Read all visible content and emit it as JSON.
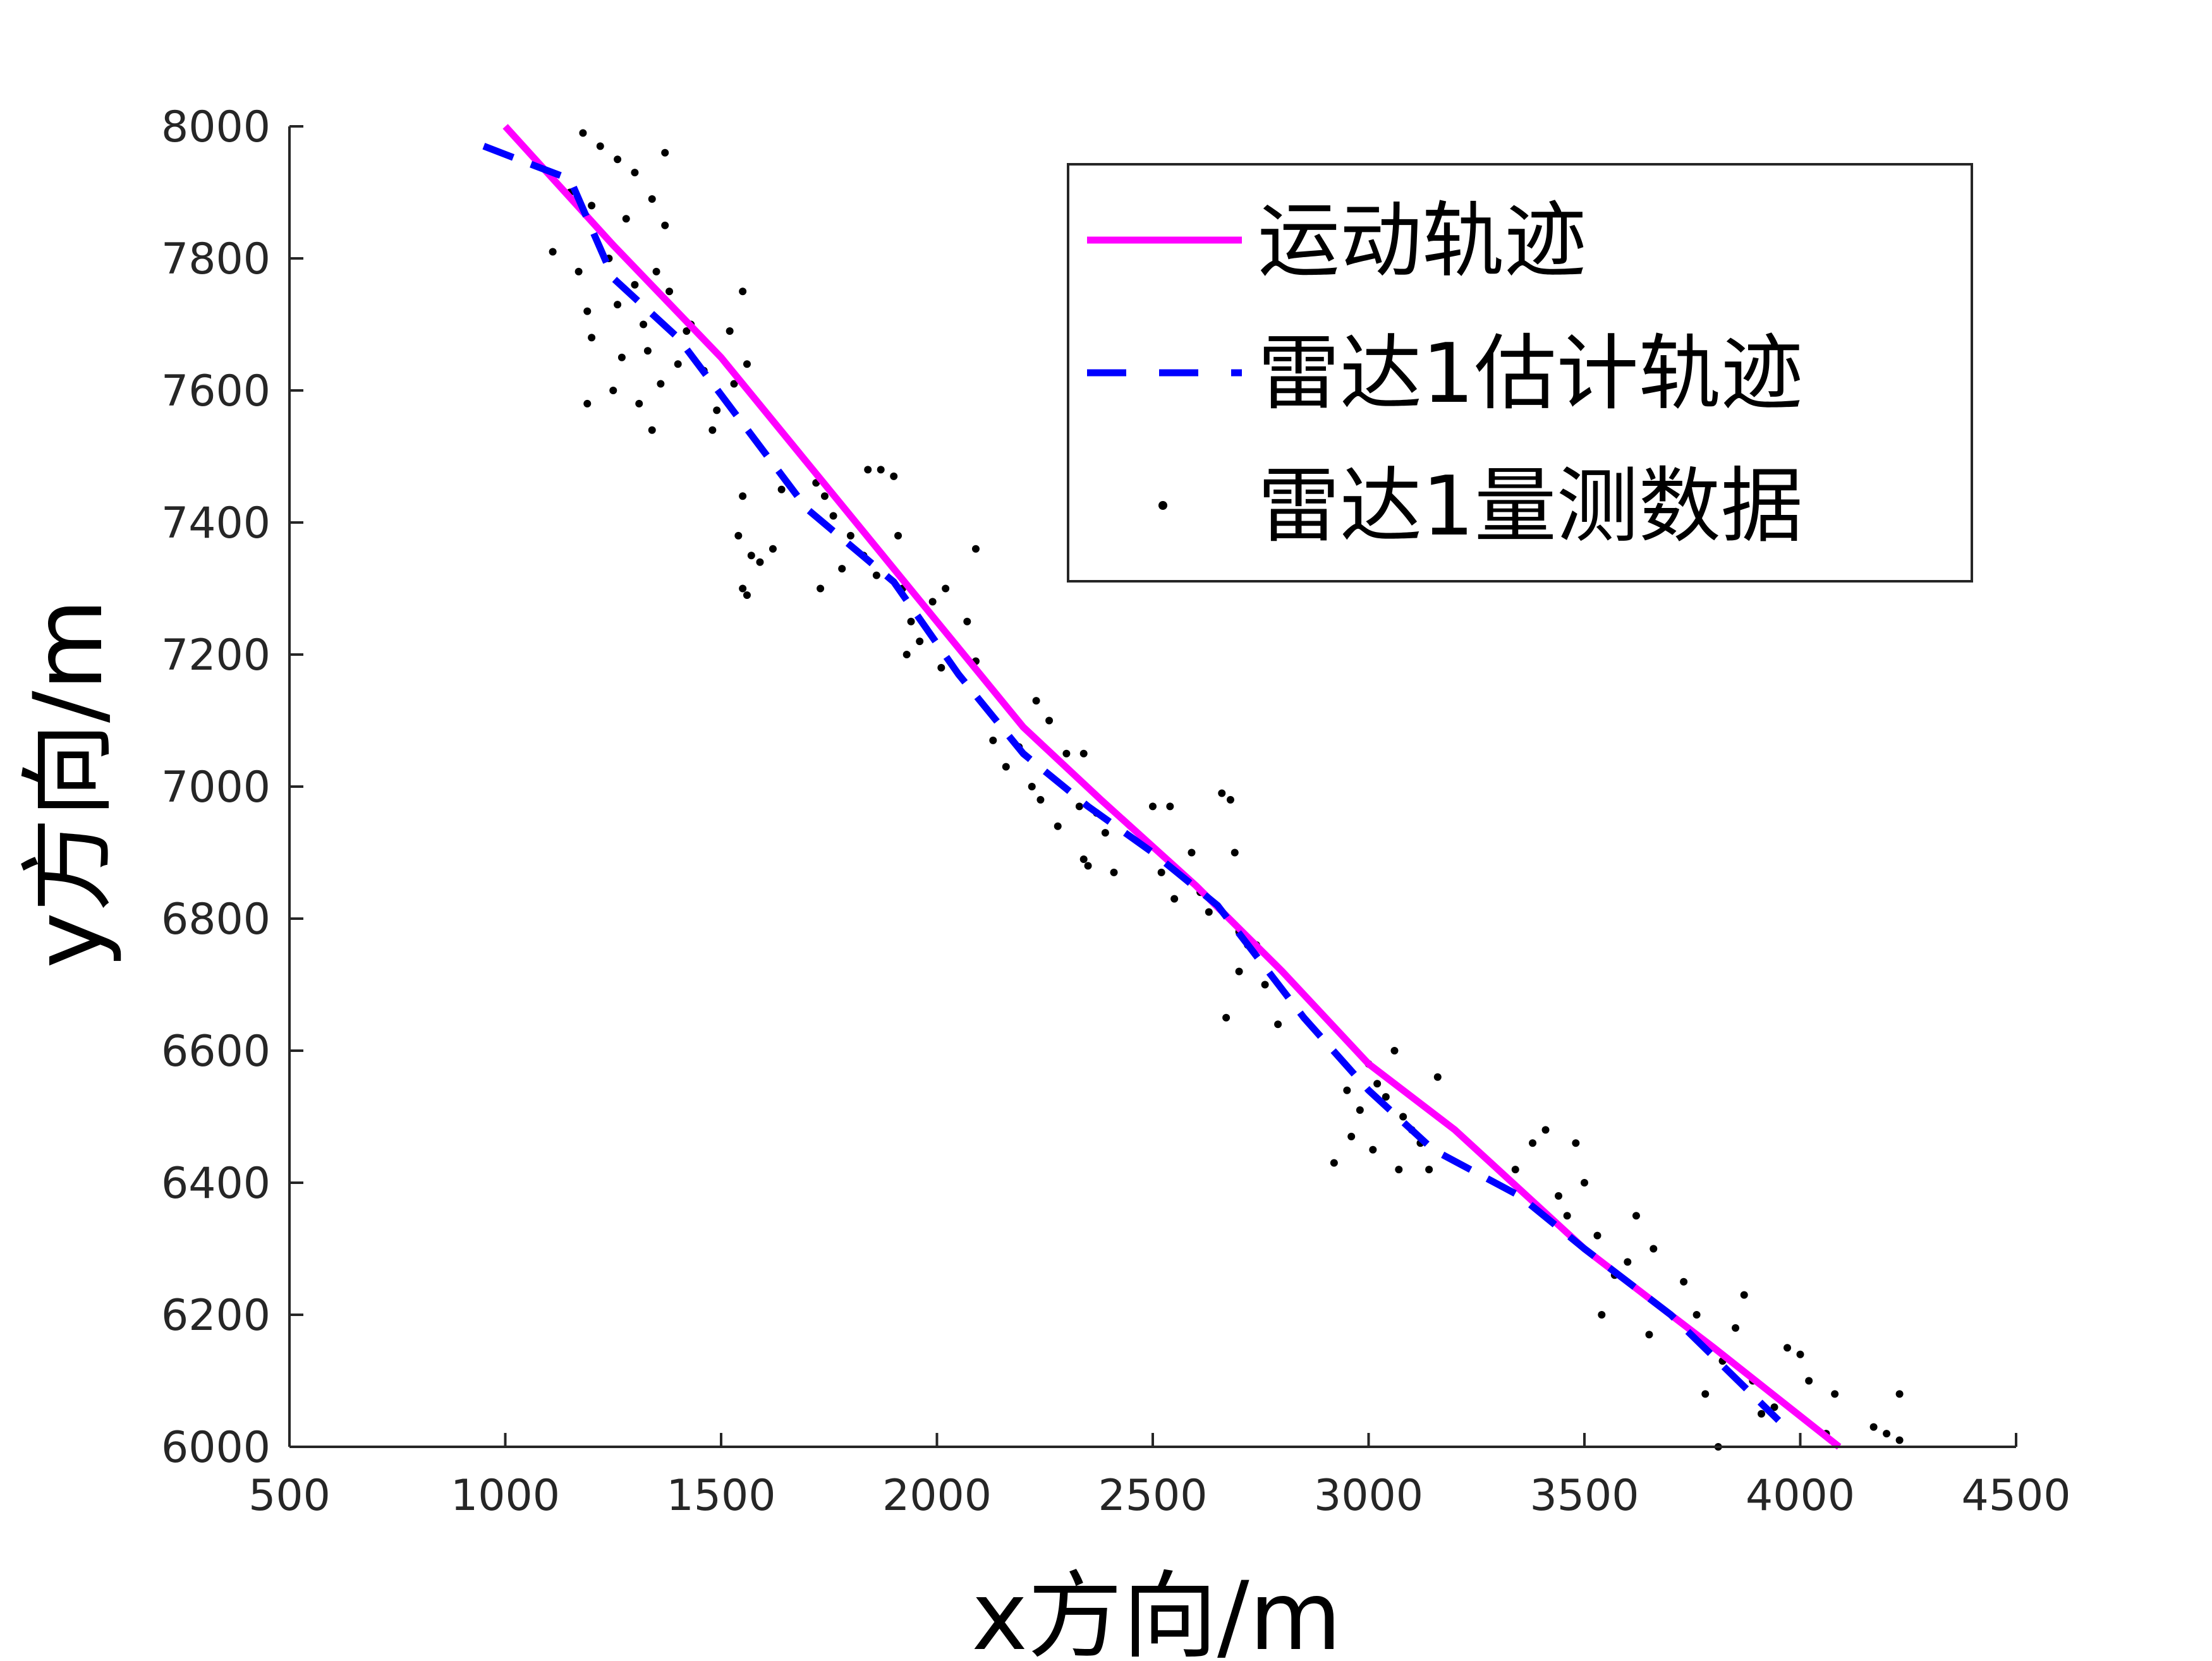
{
  "chart_data": {
    "type": "line",
    "xlabel": "x方向/m",
    "ylabel": "y方向/m",
    "xlim": [
      500,
      4500
    ],
    "ylim": [
      6000,
      8000
    ],
    "xticks": [
      500,
      1000,
      1500,
      2000,
      2500,
      3000,
      3500,
      4000,
      4500
    ],
    "yticks": [
      6000,
      6200,
      6400,
      6600,
      6800,
      7000,
      7200,
      7400,
      7600,
      7800,
      8000
    ],
    "xtick_labels": [
      "500",
      "1000",
      "1500",
      "2000",
      "2500",
      "3000",
      "3500",
      "4000",
      "4500"
    ],
    "ytick_labels": [
      "6000",
      "6200",
      "6400",
      "6600",
      "6800",
      "7000",
      "7200",
      "7400",
      "7600",
      "7800",
      "8000"
    ],
    "legend_position": "top-right",
    "series": [
      {
        "name": "运动轨迹",
        "style": "solid",
        "color": "#ff00ff",
        "points": [
          [
            1000,
            8000
          ],
          [
            1250,
            7820
          ],
          [
            1500,
            7650
          ],
          [
            1750,
            7450
          ],
          [
            2000,
            7250
          ],
          [
            2200,
            7090
          ],
          [
            2380,
            6980
          ],
          [
            2600,
            6850
          ],
          [
            2800,
            6720
          ],
          [
            3000,
            6580
          ],
          [
            3200,
            6480
          ],
          [
            3500,
            6300
          ],
          [
            3800,
            6150
          ],
          [
            4090,
            6000
          ]
        ]
      },
      {
        "name": "雷达1估计轨迹",
        "style": "dashed",
        "color": "#0000ff",
        "points": [
          [
            950,
            7970
          ],
          [
            1070,
            7940
          ],
          [
            1150,
            7920
          ],
          [
            1250,
            7770
          ],
          [
            1400,
            7680
          ],
          [
            1550,
            7550
          ],
          [
            1700,
            7420
          ],
          [
            1900,
            7310
          ],
          [
            2050,
            7170
          ],
          [
            2200,
            7050
          ],
          [
            2350,
            6970
          ],
          [
            2500,
            6900
          ],
          [
            2650,
            6820
          ],
          [
            2850,
            6650
          ],
          [
            3000,
            6540
          ],
          [
            3150,
            6450
          ],
          [
            3350,
            6380
          ],
          [
            3500,
            6300
          ],
          [
            3700,
            6200
          ],
          [
            3950,
            6040
          ]
        ]
      },
      {
        "name": "雷达1量测数据",
        "style": "markers",
        "color": "#000000",
        "points": [
          [
            1180,
            7990
          ],
          [
            1220,
            7970
          ],
          [
            1260,
            7950
          ],
          [
            1300,
            7930
          ],
          [
            1370,
            7960
          ],
          [
            1150,
            7900
          ],
          [
            1200,
            7880
          ],
          [
            1280,
            7860
          ],
          [
            1340,
            7890
          ],
          [
            1370,
            7850
          ],
          [
            1110,
            7810
          ],
          [
            1170,
            7780
          ],
          [
            1240,
            7800
          ],
          [
            1300,
            7760
          ],
          [
            1350,
            7780
          ],
          [
            1190,
            7720
          ],
          [
            1260,
            7730
          ],
          [
            1320,
            7700
          ],
          [
            1380,
            7750
          ],
          [
            1420,
            7690
          ],
          [
            1200,
            7680
          ],
          [
            1270,
            7650
          ],
          [
            1330,
            7660
          ],
          [
            1400,
            7640
          ],
          [
            1430,
            7700
          ],
          [
            1250,
            7600
          ],
          [
            1310,
            7580
          ],
          [
            1360,
            7610
          ],
          [
            1190,
            7580
          ],
          [
            1340,
            7540
          ],
          [
            1460,
            7630
          ],
          [
            1490,
            7570
          ],
          [
            1530,
            7610
          ],
          [
            1550,
            7750
          ],
          [
            1560,
            7640
          ],
          [
            1480,
            7540
          ],
          [
            1520,
            7690
          ],
          [
            1550,
            7440
          ],
          [
            1540,
            7380
          ],
          [
            1570,
            7350
          ],
          [
            1590,
            7340
          ],
          [
            1620,
            7360
          ],
          [
            1640,
            7450
          ],
          [
            1550,
            7300
          ],
          [
            1560,
            7290
          ],
          [
            1720,
            7460
          ],
          [
            1740,
            7440
          ],
          [
            1760,
            7410
          ],
          [
            1800,
            7380
          ],
          [
            1830,
            7350
          ],
          [
            1860,
            7320
          ],
          [
            1900,
            7470
          ],
          [
            1870,
            7480
          ],
          [
            1840,
            7480
          ],
          [
            1730,
            7300
          ],
          [
            1780,
            7330
          ],
          [
            1910,
            7380
          ],
          [
            1920,
            7300
          ],
          [
            1940,
            7250
          ],
          [
            1960,
            7220
          ],
          [
            1990,
            7280
          ],
          [
            2020,
            7300
          ],
          [
            2070,
            7250
          ],
          [
            2090,
            7360
          ],
          [
            2090,
            7190
          ],
          [
            2010,
            7180
          ],
          [
            1930,
            7200
          ],
          [
            2130,
            7070
          ],
          [
            2160,
            7030
          ],
          [
            2190,
            7060
          ],
          [
            2220,
            7000
          ],
          [
            2240,
            6980
          ],
          [
            2260,
            7100
          ],
          [
            2230,
            7130
          ],
          [
            2280,
            6940
          ],
          [
            2300,
            7050
          ],
          [
            2330,
            6970
          ],
          [
            2340,
            6890
          ],
          [
            2350,
            6880
          ],
          [
            2370,
            6960
          ],
          [
            2390,
            6930
          ],
          [
            2410,
            6870
          ],
          [
            2340,
            7050
          ],
          [
            2500,
            6970
          ],
          [
            2540,
            6970
          ],
          [
            2520,
            6870
          ],
          [
            2550,
            6830
          ],
          [
            2590,
            6900
          ],
          [
            2610,
            6840
          ],
          [
            2630,
            6810
          ],
          [
            2660,
            6990
          ],
          [
            2680,
            6980
          ],
          [
            2700,
            6780
          ],
          [
            2720,
            6760
          ],
          [
            2740,
            6760
          ],
          [
            2760,
            6700
          ],
          [
            2700,
            6720
          ],
          [
            2670,
            6650
          ],
          [
            2790,
            6640
          ],
          [
            2690,
            6900
          ],
          [
            2920,
            6430
          ],
          [
            2950,
            6540
          ],
          [
            2980,
            6510
          ],
          [
            3000,
            6580
          ],
          [
            3020,
            6550
          ],
          [
            3040,
            6530
          ],
          [
            3060,
            6600
          ],
          [
            3080,
            6500
          ],
          [
            3100,
            6480
          ],
          [
            3120,
            6460
          ],
          [
            3140,
            6420
          ],
          [
            3160,
            6560
          ],
          [
            3010,
            6450
          ],
          [
            3070,
            6420
          ],
          [
            2960,
            6470
          ],
          [
            3340,
            6420
          ],
          [
            3380,
            6460
          ],
          [
            3410,
            6480
          ],
          [
            3440,
            6380
          ],
          [
            3460,
            6350
          ],
          [
            3480,
            6460
          ],
          [
            3500,
            6400
          ],
          [
            3530,
            6320
          ],
          [
            3540,
            6200
          ],
          [
            3570,
            6260
          ],
          [
            3600,
            6280
          ],
          [
            3620,
            6350
          ],
          [
            3650,
            6170
          ],
          [
            3660,
            6300
          ],
          [
            3730,
            6250
          ],
          [
            3760,
            6200
          ],
          [
            3780,
            6080
          ],
          [
            3820,
            6130
          ],
          [
            3850,
            6180
          ],
          [
            3870,
            6230
          ],
          [
            3890,
            6100
          ],
          [
            3910,
            6050
          ],
          [
            3940,
            6060
          ],
          [
            3970,
            6150
          ],
          [
            4000,
            6140
          ],
          [
            4020,
            6100
          ],
          [
            4060,
            6020
          ],
          [
            4080,
            6080
          ],
          [
            4170,
            6030
          ],
          [
            4200,
            6020
          ],
          [
            4230,
            6080
          ],
          [
            4230,
            6010
          ],
          [
            3810,
            6000
          ]
        ]
      }
    ]
  }
}
